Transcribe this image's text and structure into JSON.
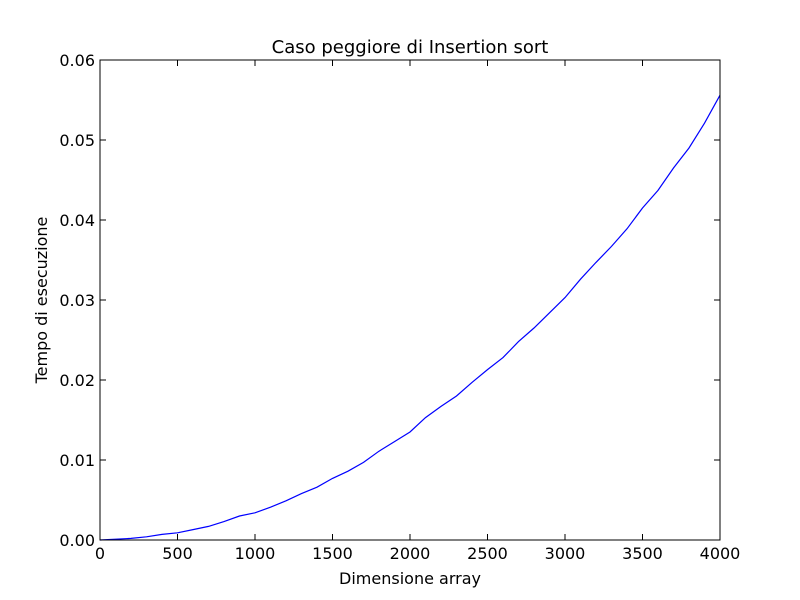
{
  "chart_data": {
    "type": "line",
    "title": "Caso peggiore di Insertion sort",
    "xlabel": "Dimensione array",
    "ylabel": "Tempo di esecuzione",
    "xlim": [
      0,
      4000
    ],
    "ylim": [
      0,
      0.06
    ],
    "x_ticks": [
      0,
      500,
      1000,
      1500,
      2000,
      2500,
      3000,
      3500,
      4000
    ],
    "x_tick_labels": [
      "0",
      "500",
      "1000",
      "1500",
      "2000",
      "2500",
      "3000",
      "3500",
      "4000"
    ],
    "y_ticks": [
      0,
      0.01,
      0.02,
      0.03,
      0.04,
      0.05,
      0.06
    ],
    "y_tick_labels": [
      "0.00",
      "0.01",
      "0.02",
      "0.03",
      "0.04",
      "0.05",
      "0.06"
    ],
    "grid": false,
    "line_color": "#0000ff",
    "series": [
      {
        "x": [
          0,
          100,
          200,
          300,
          400,
          500,
          600,
          700,
          800,
          900,
          1000,
          1100,
          1200,
          1300,
          1400,
          1500,
          1600,
          1700,
          1800,
          1900,
          2000,
          2100,
          2200,
          2300,
          2400,
          2500,
          2600,
          2700,
          2800,
          2900,
          3000,
          3100,
          3200,
          3300,
          3400,
          3500,
          3600,
          3700,
          3800,
          3900,
          4000
        ],
        "y": [
          0.0,
          0.0001,
          0.0002,
          0.0004,
          0.0007,
          0.0009,
          0.0013,
          0.0017,
          0.0023,
          0.003,
          0.0034,
          0.0041,
          0.0049,
          0.0058,
          0.0066,
          0.0077,
          0.0086,
          0.0097,
          0.0111,
          0.0123,
          0.0135,
          0.0153,
          0.0167,
          0.018,
          0.0197,
          0.0213,
          0.0228,
          0.0248,
          0.0265,
          0.0284,
          0.0303,
          0.0326,
          0.0347,
          0.0367,
          0.0389,
          0.0415,
          0.0437,
          0.0465,
          0.049,
          0.0521,
          0.0556
        ]
      }
    ]
  }
}
